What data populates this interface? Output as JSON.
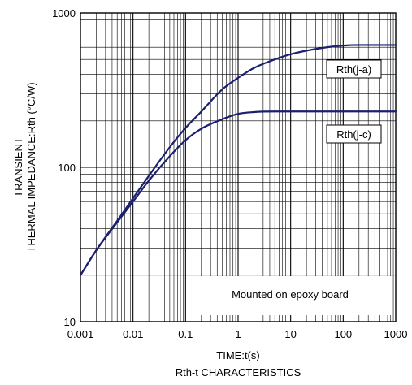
{
  "chart_data": {
    "type": "line",
    "title": "",
    "caption": "Rth-t CHARACTERISTICS",
    "xlabel": "TIME:t(s)",
    "ylabel_line1": "TRANSIENT",
    "ylabel_line2": "THERMAL IMPEDANCE:Rth (°C/W)",
    "x_scale": "log",
    "y_scale": "log",
    "xlim": [
      0.001,
      1000
    ],
    "ylim": [
      10,
      1000
    ],
    "x_ticks": [
      "0.001",
      "0.01",
      "0.1",
      "1",
      "10",
      "100",
      "1000"
    ],
    "y_ticks": [
      "10",
      "100",
      "1000"
    ],
    "grid": true,
    "annotation": "Mounted on epoxy board",
    "line_color": "#1b1f6e",
    "series": [
      {
        "name": "Rth(j-a)",
        "x": [
          0.001,
          0.002,
          0.005,
          0.01,
          0.02,
          0.05,
          0.1,
          0.2,
          0.5,
          1,
          2,
          5,
          10,
          20,
          50,
          100,
          200,
          500,
          1000
        ],
        "y": [
          20,
          29,
          45,
          63,
          88,
          135,
          180,
          230,
          320,
          380,
          440,
          500,
          540,
          570,
          600,
          615,
          620,
          620,
          620
        ]
      },
      {
        "name": "Rth(j-c)",
        "x": [
          0.001,
          0.002,
          0.005,
          0.01,
          0.02,
          0.05,
          0.1,
          0.2,
          0.5,
          1,
          2,
          5,
          10,
          100,
          1000
        ],
        "y": [
          20,
          29,
          44,
          60,
          82,
          118,
          150,
          178,
          205,
          222,
          228,
          230,
          230,
          230,
          230
        ]
      }
    ]
  }
}
